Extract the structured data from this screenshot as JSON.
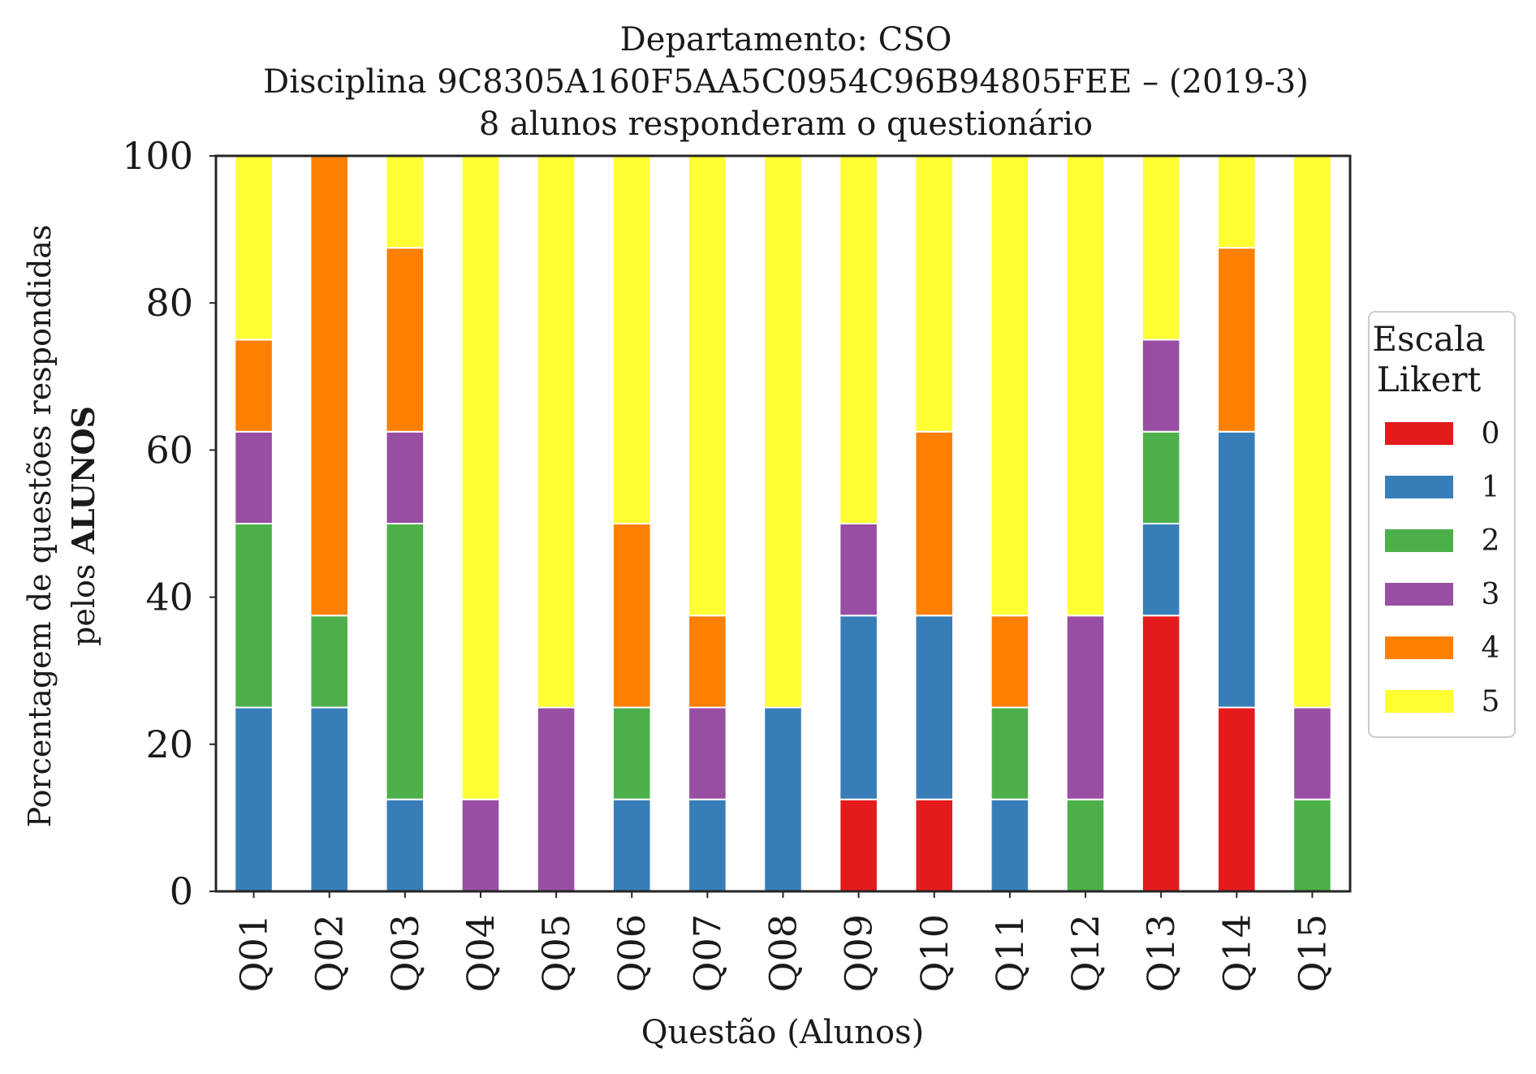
{
  "chart_data": {
    "type": "bar",
    "stacked": true,
    "title_lines": [
      "Departamento: CSO",
      "Disciplina 9C8305A160F5AA5C0954C96B94805FEE – (2019-3)",
      "8 alunos responderam o questionário"
    ],
    "xlabel": "Questão (Alunos)",
    "ylabel_line1": "Porcentagem de questões respondidas",
    "ylabel_line2_prefix": "pelos ",
    "ylabel_line2_bold": "ALUNOS",
    "ylim": [
      0,
      100
    ],
    "yticks": [
      "0",
      "20",
      "40",
      "60",
      "80",
      "100"
    ],
    "grid": false,
    "categories": [
      "Q01",
      "Q02",
      "Q03",
      "Q04",
      "Q05",
      "Q06",
      "Q07",
      "Q08",
      "Q09",
      "Q10",
      "Q11",
      "Q12",
      "Q13",
      "Q14",
      "Q15"
    ],
    "legend": {
      "title_line1": "Escala",
      "title_line2": "Likert",
      "placement": "right-center"
    },
    "series": [
      {
        "name": "0",
        "color": "#e41a1c",
        "values": [
          0,
          0,
          0,
          0,
          0,
          0,
          0,
          0,
          12.5,
          12.5,
          0,
          0,
          37.5,
          25,
          0
        ]
      },
      {
        "name": "1",
        "color": "#377eb8",
        "values": [
          25,
          25,
          12.5,
          0,
          0,
          12.5,
          12.5,
          25,
          25,
          25,
          12.5,
          0,
          12.5,
          37.5,
          0
        ]
      },
      {
        "name": "2",
        "color": "#4daf4a",
        "values": [
          25,
          12.5,
          37.5,
          0,
          0,
          12.5,
          0,
          0,
          0,
          0,
          12.5,
          12.5,
          12.5,
          0,
          12.5
        ]
      },
      {
        "name": "3",
        "color": "#984ea3",
        "values": [
          12.5,
          0,
          12.5,
          12.5,
          25,
          0,
          12.5,
          0,
          12.5,
          0,
          0,
          25,
          12.5,
          0,
          12.5
        ]
      },
      {
        "name": "4",
        "color": "#ff7f00",
        "values": [
          12.5,
          62.5,
          25,
          0,
          0,
          25,
          12.5,
          0,
          0,
          25,
          12.5,
          0,
          0,
          25,
          0
        ]
      },
      {
        "name": "5",
        "color": "#ffff33",
        "values": [
          25,
          0,
          12.5,
          87.5,
          75,
          50,
          62.5,
          75,
          50,
          37.5,
          62.5,
          62.5,
          25,
          12.5,
          75
        ]
      }
    ]
  }
}
